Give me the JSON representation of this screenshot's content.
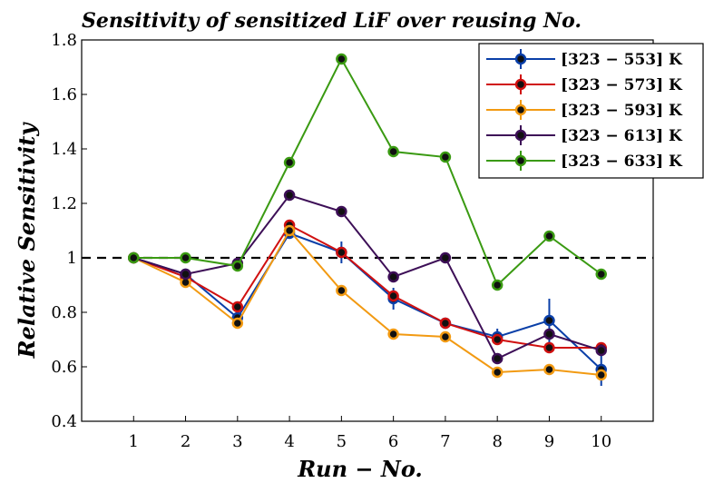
{
  "chart_data": {
    "type": "line",
    "title": "Sensitivity of sensitized LiF over reusing No.",
    "xlabel": "Run − No.",
    "ylabel": "Relative Sensitivity",
    "xlim": [
      0,
      11
    ],
    "ylim": [
      0.4,
      1.8
    ],
    "x_ticks": [
      "1",
      "2",
      "3",
      "4",
      "5",
      "6",
      "7",
      "8",
      "9",
      "10"
    ],
    "y_ticks": [
      "0.4",
      "0.6",
      "0.8",
      "1",
      "1.2",
      "1.4",
      "1.6",
      "1.8"
    ],
    "reference_line": 1,
    "legend_position": "top-right",
    "x": [
      1,
      2,
      3,
      4,
      5,
      6,
      7,
      8,
      9,
      10
    ],
    "series": [
      {
        "name": "[323 − 553] K",
        "color": "#0a3fa8",
        "values": [
          1.0,
          0.94,
          0.78,
          1.09,
          1.02,
          0.85,
          0.76,
          0.71,
          0.77,
          0.59
        ],
        "errors": [
          0,
          0.01,
          0.01,
          0.01,
          0.04,
          0.04,
          0.01,
          0.03,
          0.08,
          0.06
        ]
      },
      {
        "name": "[323 − 573] K",
        "color": "#d01010",
        "values": [
          1.0,
          0.93,
          0.82,
          1.12,
          1.02,
          0.86,
          0.76,
          0.7,
          0.67,
          0.67
        ],
        "errors": [
          0,
          0.01,
          0.01,
          0.01,
          0.01,
          0.02,
          0.01,
          0.01,
          0.01,
          0.01
        ]
      },
      {
        "name": "[323 − 593] K",
        "color": "#f29a12",
        "values": [
          1.0,
          0.91,
          0.76,
          1.1,
          0.88,
          0.72,
          0.71,
          0.58,
          0.59,
          0.57
        ],
        "errors": [
          0,
          0.01,
          0.01,
          0.01,
          0.01,
          0.01,
          0.01,
          0.01,
          0.01,
          0.01
        ]
      },
      {
        "name": "[323 − 613] K",
        "color": "#3d0f57",
        "values": [
          1.0,
          0.94,
          0.98,
          1.23,
          1.17,
          0.93,
          1.0,
          0.63,
          0.72,
          0.66
        ],
        "errors": [
          0,
          0.01,
          0.01,
          0.01,
          0.01,
          0.01,
          0.01,
          0.01,
          0.01,
          0.01
        ]
      },
      {
        "name": "[323 − 633] K",
        "color": "#3a9a12",
        "values": [
          1.0,
          1.0,
          0.97,
          1.35,
          1.73,
          1.39,
          1.37,
          0.9,
          1.08,
          0.94
        ],
        "errors": [
          0,
          0.01,
          0.01,
          0.01,
          0.01,
          0.01,
          0.01,
          0.01,
          0.01,
          0.01
        ]
      }
    ]
  }
}
